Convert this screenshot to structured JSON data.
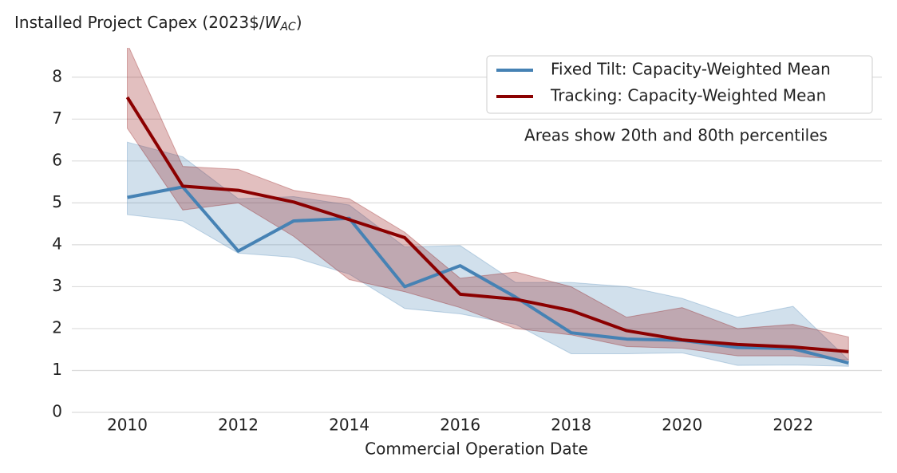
{
  "chart_data": {
    "type": "line",
    "y_label": "Installed Project Capex (2023$/",
    "y_label_unit": "W",
    "y_label_subscript": "AC",
    "y_label_end": ")",
    "x_label": "Commercial Operation Date",
    "annotation": "Areas show 20th and 80th percentiles",
    "x": [
      2010,
      2011,
      2012,
      2013,
      2014,
      2015,
      2016,
      2017,
      2018,
      2019,
      2020,
      2021,
      2022,
      2023
    ],
    "series": [
      {
        "name": "Fixed Tilt: Capacity-Weighted Mean",
        "color": "#4682b4",
        "values": [
          5.13,
          5.38,
          3.85,
          4.57,
          4.63,
          3.0,
          3.5,
          2.75,
          1.9,
          1.75,
          1.72,
          1.55,
          1.52,
          1.18
        ],
        "lower": [
          4.72,
          4.57,
          3.8,
          3.7,
          3.3,
          2.48,
          2.35,
          2.1,
          1.4,
          1.4,
          1.42,
          1.12,
          1.13,
          1.1
        ],
        "upper": [
          6.45,
          6.1,
          5.1,
          5.15,
          4.95,
          3.95,
          3.98,
          3.1,
          3.1,
          3.0,
          2.72,
          2.27,
          2.53,
          1.25
        ]
      },
      {
        "name": "Tracking: Capacity-Weighted Mean",
        "color": "#8b0000",
        "values": [
          7.52,
          5.4,
          5.3,
          5.02,
          4.6,
          4.17,
          2.82,
          2.7,
          2.43,
          1.95,
          1.73,
          1.62,
          1.56,
          1.45
        ],
        "lower": [
          6.78,
          4.83,
          5.0,
          4.2,
          3.17,
          2.88,
          2.5,
          2.0,
          1.85,
          1.57,
          1.53,
          1.35,
          1.35,
          1.25
        ],
        "upper": [
          8.8,
          5.87,
          5.8,
          5.3,
          5.1,
          4.3,
          3.2,
          3.35,
          3.0,
          2.27,
          2.5,
          2.0,
          2.1,
          1.8
        ]
      }
    ],
    "xlim": [
      2009,
      2023.6
    ],
    "ylim": [
      0,
      8.7
    ],
    "xticks": [
      2010,
      2012,
      2014,
      2016,
      2018,
      2020,
      2022
    ],
    "yticks": [
      0,
      1,
      2,
      3,
      4,
      5,
      6,
      7,
      8
    ],
    "grid": true,
    "legend": "upper right"
  }
}
